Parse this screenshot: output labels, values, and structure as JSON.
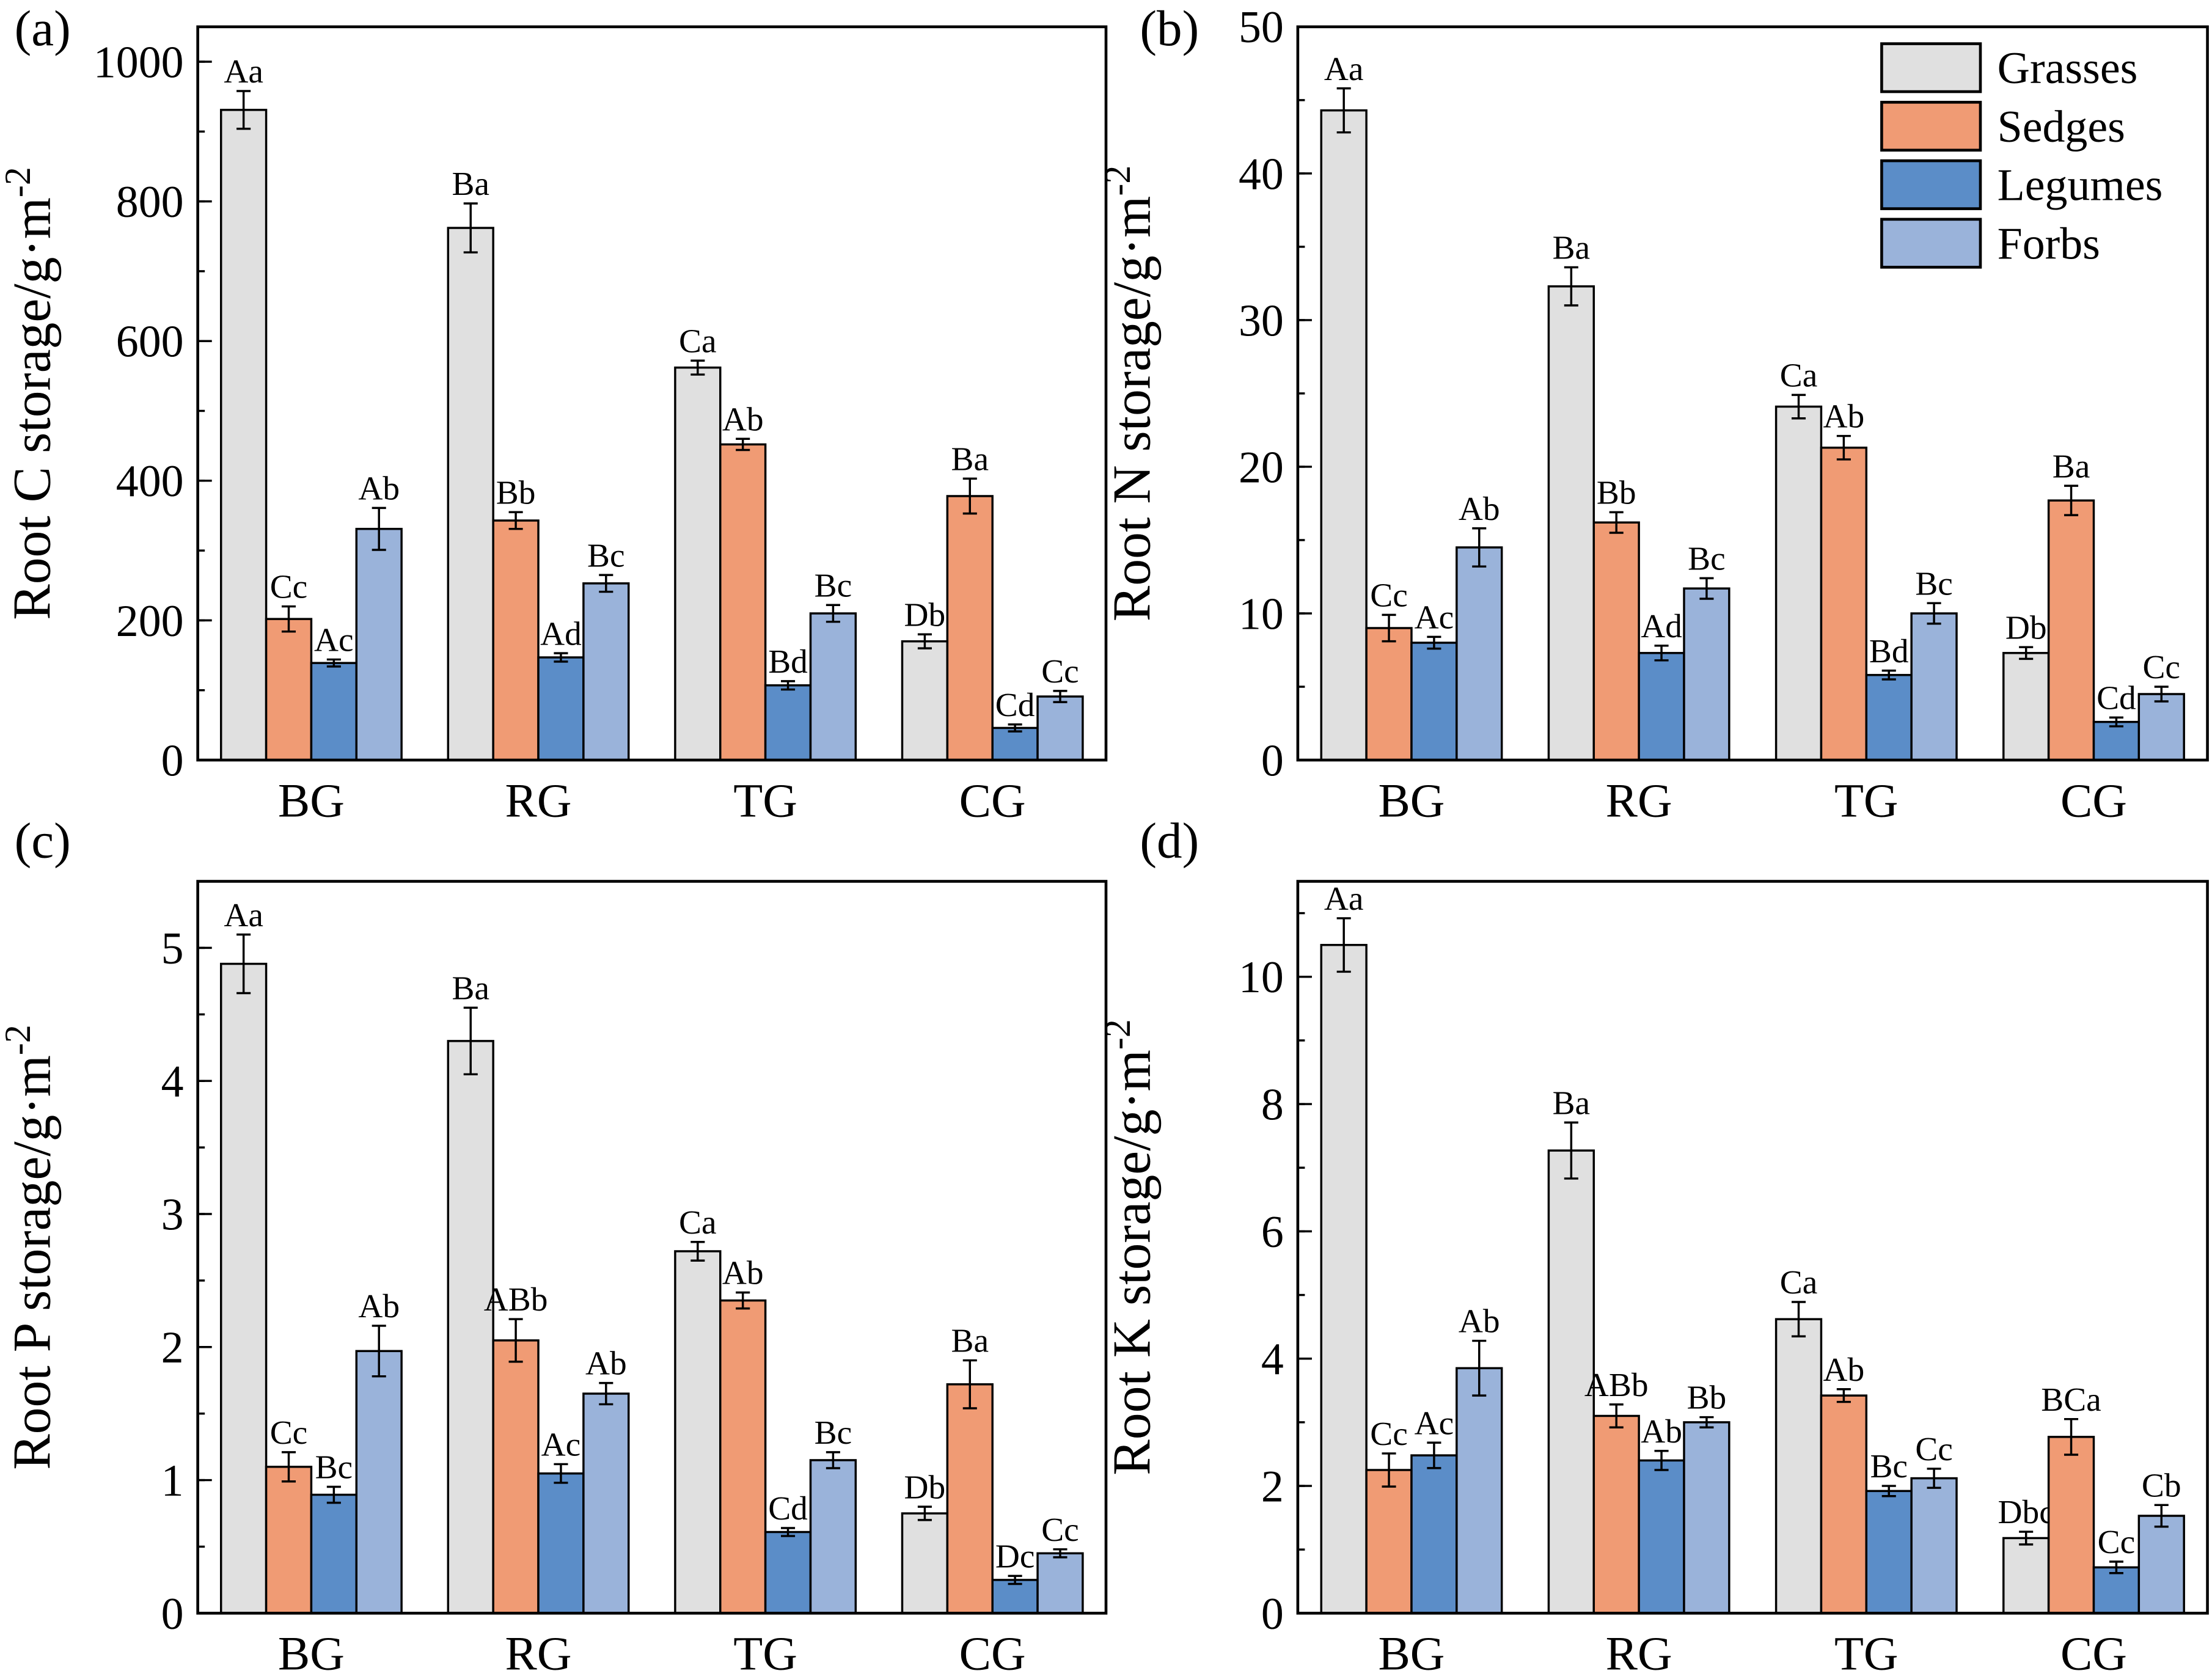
{
  "chart_data": [
    {
      "type": "bar",
      "panel_label": "(a)",
      "ylabel": "Root C storage/g·m",
      "ylabel_sup": "-2",
      "categories": [
        "BG",
        "RG",
        "TG",
        "CG"
      ],
      "ylim": [
        0,
        1050
      ],
      "yticks": [
        0,
        200,
        400,
        600,
        800,
        1000
      ],
      "minor_step": 100,
      "series": [
        {
          "name": "Grasses",
          "values": [
            931,
            762,
            562,
            170
          ],
          "errors": [
            27,
            35,
            10,
            10
          ],
          "letters": [
            "Aa",
            "Ba",
            "Ca",
            "Db"
          ]
        },
        {
          "name": "Sedges",
          "values": [
            202,
            343,
            452,
            378
          ],
          "errors": [
            18,
            12,
            8,
            25
          ],
          "letters": [
            "Cc",
            "Bb",
            "Ab",
            "Ba"
          ]
        },
        {
          "name": "Legumes",
          "values": [
            139,
            147,
            107,
            46
          ],
          "errors": [
            5,
            6,
            6,
            5
          ],
          "letters": [
            "Ac",
            "Ad",
            "Bd",
            "Cd"
          ]
        },
        {
          "name": "Forbs",
          "values": [
            331,
            253,
            210,
            91
          ],
          "errors": [
            30,
            12,
            12,
            8
          ],
          "letters": [
            "Ab",
            "Bc",
            "Bc",
            "Cc"
          ]
        }
      ],
      "legend": false
    },
    {
      "type": "bar",
      "panel_label": "(b)",
      "ylabel": "Root N storage/g·m",
      "ylabel_sup": "-2",
      "categories": [
        "BG",
        "RG",
        "TG",
        "CG"
      ],
      "ylim": [
        0,
        50
      ],
      "yticks": [
        0,
        10,
        20,
        30,
        40,
        50
      ],
      "minor_step": 5,
      "series": [
        {
          "name": "Grasses",
          "values": [
            44.3,
            32.3,
            24.1,
            7.3
          ],
          "errors": [
            1.5,
            1.3,
            0.8,
            0.4
          ],
          "letters": [
            "Aa",
            "Ba",
            "Ca",
            "Db"
          ]
        },
        {
          "name": "Sedges",
          "values": [
            9.0,
            16.2,
            21.3,
            17.7
          ],
          "errors": [
            0.9,
            0.7,
            0.8,
            1.0
          ],
          "letters": [
            "Cc",
            "Bb",
            "Ab",
            "Ba"
          ]
        },
        {
          "name": "Legumes",
          "values": [
            8.0,
            7.3,
            5.8,
            2.6
          ],
          "errors": [
            0.4,
            0.5,
            0.3,
            0.3
          ],
          "letters": [
            "Ac",
            "Ad",
            "Bd",
            "Cd"
          ]
        },
        {
          "name": "Forbs",
          "values": [
            14.5,
            11.7,
            10.0,
            4.5
          ],
          "errors": [
            1.3,
            0.7,
            0.7,
            0.5
          ],
          "letters": [
            "Ab",
            "Bc",
            "Bc",
            "Cc"
          ]
        }
      ],
      "legend": true,
      "legend_position": "top-right"
    },
    {
      "type": "bar",
      "panel_label": "(c)",
      "ylabel": "Root P storage/g·m",
      "ylabel_sup": "-2",
      "categories": [
        "BG",
        "RG",
        "TG",
        "CG"
      ],
      "ylim": [
        0,
        5.5
      ],
      "yticks": [
        0,
        1,
        2,
        3,
        4,
        5
      ],
      "minor_step": 0.5,
      "series": [
        {
          "name": "Grasses",
          "values": [
            4.88,
            4.3,
            2.72,
            0.75
          ],
          "errors": [
            0.22,
            0.25,
            0.07,
            0.05
          ],
          "letters": [
            "Aa",
            "Ba",
            "Ca",
            "Db"
          ]
        },
        {
          "name": "Sedges",
          "values": [
            1.1,
            2.05,
            2.35,
            1.72
          ],
          "errors": [
            0.11,
            0.16,
            0.06,
            0.18
          ],
          "letters": [
            "Cc",
            "ABb",
            "Ab",
            "Ba"
          ]
        },
        {
          "name": "Legumes",
          "values": [
            0.89,
            1.05,
            0.61,
            0.25
          ],
          "errors": [
            0.06,
            0.07,
            0.03,
            0.03
          ],
          "letters": [
            "Bc",
            "Ac",
            "Cd",
            "Dc"
          ]
        },
        {
          "name": "Forbs",
          "values": [
            1.97,
            1.65,
            1.15,
            0.45
          ],
          "errors": [
            0.19,
            0.08,
            0.06,
            0.03
          ],
          "letters": [
            "Ab",
            "Ab",
            "Bc",
            "Cc"
          ]
        }
      ],
      "legend": false
    },
    {
      "type": "bar",
      "panel_label": "(d)",
      "ylabel": "Root K storage/g·m",
      "ylabel_sup": "-2",
      "categories": [
        "BG",
        "RG",
        "TG",
        "CG"
      ],
      "ylim": [
        0,
        11.5
      ],
      "yticks": [
        0,
        2,
        4,
        6,
        8,
        10
      ],
      "minor_step": 1,
      "series": [
        {
          "name": "Grasses",
          "values": [
            10.5,
            7.27,
            4.62,
            1.18
          ],
          "errors": [
            0.42,
            0.44,
            0.27,
            0.1
          ],
          "letters": [
            "Aa",
            "Ba",
            "Ca",
            "Dbc"
          ]
        },
        {
          "name": "Sedges",
          "values": [
            2.25,
            3.1,
            3.42,
            2.77
          ],
          "errors": [
            0.26,
            0.18,
            0.1,
            0.28
          ],
          "letters": [
            "Cc",
            "ABb",
            "Ab",
            "BCa"
          ]
        },
        {
          "name": "Legumes",
          "values": [
            2.48,
            2.4,
            1.92,
            0.72
          ],
          "errors": [
            0.2,
            0.15,
            0.08,
            0.09
          ],
          "letters": [
            "Ac",
            "Ab",
            "Bc",
            "Cc"
          ]
        },
        {
          "name": "Forbs",
          "values": [
            3.85,
            3.0,
            2.12,
            1.53
          ],
          "errors": [
            0.43,
            0.08,
            0.15,
            0.17
          ],
          "letters": [
            "Ab",
            "Bb",
            "Cc",
            "Cb"
          ]
        }
      ],
      "legend": false
    }
  ],
  "colors": {
    "Grasses": "#e0e0e0",
    "Sedges": "#f09b74",
    "Legumes": "#5b8dc8",
    "Forbs": "#9ab3da"
  }
}
